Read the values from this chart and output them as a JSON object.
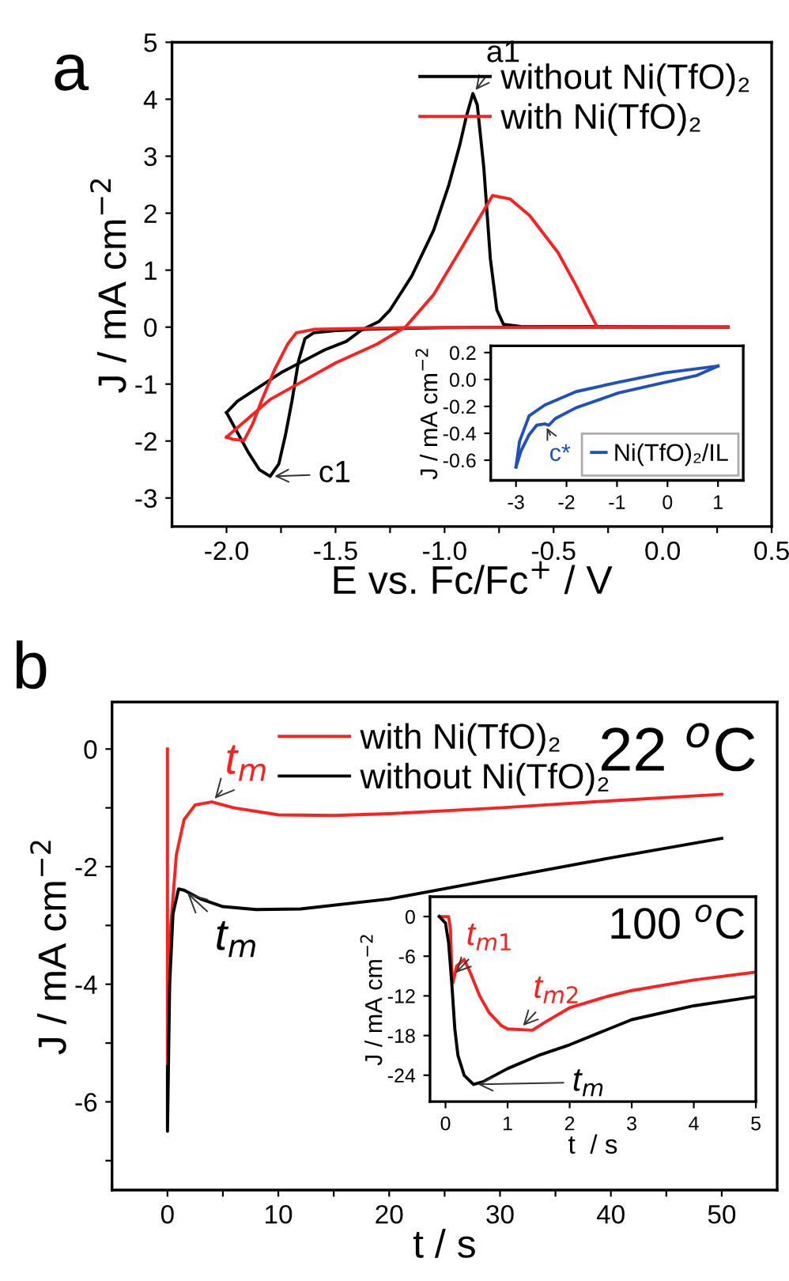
{
  "chart_data": [
    {
      "type": "line",
      "title": "a",
      "xlabel": "E vs. Fc/Fc$^{+}$ / V",
      "ylabel": "J / mA cm$^{−2}$",
      "xlim": [
        -2.25,
        0.5
      ],
      "ylim": [
        -3.5,
        5
      ],
      "xticks": [
        {
          "value": -2,
          "label": "-2.0"
        },
        {
          "value": -1.75,
          "label": null
        },
        {
          "value": -1.5,
          "label": "-1.5"
        },
        {
          "value": -1.25,
          "label": null
        },
        {
          "value": -1,
          "label": "-1.0"
        },
        {
          "value": -0.75,
          "label": null
        },
        {
          "value": -0.5,
          "label": "-0.5"
        },
        {
          "value": -0.25,
          "label": null
        },
        {
          "value": 0,
          "label": "0.0"
        },
        {
          "value": 0.25,
          "label": null
        },
        {
          "value": 0.5,
          "label": "0.5"
        }
      ],
      "yticks": [
        {
          "value": -3,
          "label": "-3"
        },
        {
          "value": -2,
          "label": "-2"
        },
        {
          "value": -1,
          "label": "-1"
        },
        0,
        1,
        2,
        3,
        4,
        5
      ],
      "legend": "top right",
      "grid": false,
      "annotations": [
        {
          "text": "a1",
          "x": -0.87,
          "y": 4.1
        },
        {
          "text": "c1",
          "x": -1.8,
          "y": -2.62
        }
      ],
      "series": [
        {
          "name": "without Ni(TfO)₂",
          "color": "#000000",
          "x": [
            0.3,
            -0.5,
            -1.0,
            -1.3,
            -1.5,
            -1.6,
            -1.64,
            -1.67,
            -1.7,
            -1.73,
            -1.76,
            -1.8,
            -1.85,
            -1.9,
            -1.95,
            -2.0
          ],
          "values": [
            0,
            0,
            -0.01,
            -0.03,
            -0.06,
            -0.1,
            -0.2,
            -0.6,
            -1.3,
            -1.9,
            -2.4,
            -2.62,
            -2.5,
            -2.2,
            -1.85,
            -1.5
          ]
        },
        {
          "color": "#000000",
          "x": [
            -2.0,
            -1.95,
            -1.85,
            -1.75,
            -1.65,
            -1.55,
            -1.45,
            -1.38,
            -1.3,
            -1.25,
            -1.15,
            -1.05,
            -0.98,
            -0.93,
            -0.9,
            -0.87,
            -0.85,
            -0.82,
            -0.79,
            -0.76,
            -0.73,
            -0.65,
            0.3
          ],
          "values": [
            -1.5,
            -1.3,
            -1.05,
            -0.8,
            -0.6,
            -0.4,
            -0.25,
            -0.05,
            0.1,
            0.3,
            0.9,
            1.7,
            2.5,
            3.2,
            3.7,
            4.1,
            3.9,
            2.8,
            1.2,
            0.3,
            0.05,
            0.01,
            0
          ]
        },
        {
          "name": "with Ni(TfO)₂",
          "color": "#ff2020",
          "x": [
            0.3,
            -1.2,
            -1.6,
            -1.68,
            -1.72,
            -1.78,
            -1.84,
            -1.88,
            -1.92,
            -1.97,
            -2.0
          ],
          "values": [
            0,
            -0.01,
            -0.04,
            -0.1,
            -0.3,
            -0.75,
            -1.3,
            -1.7,
            -1.99,
            -1.97,
            -1.93
          ]
        },
        {
          "color": "#ff2020",
          "x": [
            -2.0,
            -1.9,
            -1.8,
            -1.65,
            -1.5,
            -1.31,
            -1.18,
            -1.05,
            -0.92,
            -0.78,
            -0.7,
            -0.61,
            -0.48,
            -0.4,
            -0.34,
            -0.3,
            0.3
          ],
          "values": [
            -1.93,
            -1.6,
            -1.27,
            -0.95,
            -0.63,
            -0.3,
            0,
            0.57,
            1.4,
            2.31,
            2.25,
            1.96,
            1.31,
            0.75,
            0.3,
            0,
            0
          ]
        }
      ]
    },
    {
      "type": "line",
      "ylabel": "J / mA cm$^{−2}$",
      "xlim": [
        -3.5,
        1.5
      ],
      "ylim": [
        -0.75,
        0.25
      ],
      "xticks": [
        {
          "value": -3,
          "label": "-3"
        },
        {
          "value": -2,
          "label": "-2"
        },
        {
          "value": -1,
          "label": "-1"
        },
        0,
        1
      ],
      "yticks": [
        {
          "value": -0.6,
          "label": "-0.6"
        },
        {
          "value": -0.4,
          "label": "-0.4"
        },
        {
          "value": -0.2,
          "label": "-0.2"
        },
        {
          "value": 0,
          "label": "0.0"
        },
        0.2
      ],
      "legend": "bottom right",
      "grid": false,
      "annotations": [
        {
          "text": "c*",
          "x": -2.43,
          "y": -0.33
        }
      ],
      "series": [
        {
          "name": "Ni(TfO)₂/IL",
          "color": "#2050c0",
          "x": [
            -3.0,
            -2.93,
            -2.74,
            -2.43,
            -1.81,
            -0.97,
            -0.04,
            1.0
          ],
          "values": [
            -0.65,
            -0.46,
            -0.27,
            -0.19,
            -0.09,
            -0.02,
            0.05,
            0.1
          ]
        },
        {
          "color": "#2050c0",
          "x": [
            1.0,
            0.58,
            -0.04,
            -0.97,
            -1.81,
            -2.22,
            -2.35,
            -2.43,
            -2.59,
            -2.74,
            -2.9,
            -3.0
          ],
          "values": [
            0.1,
            0.03,
            -0.02,
            -0.1,
            -0.21,
            -0.29,
            -0.34,
            -0.33,
            -0.34,
            -0.41,
            -0.53,
            -0.65
          ]
        }
      ]
    },
    {
      "type": "line",
      "title": "b",
      "xlabel": "t / s",
      "ylabel": "J / mA cm$^{−2}$",
      "xlim": [
        -5,
        55
      ],
      "ylim": [
        -7.5,
        0.8
      ],
      "xticks": [
        0,
        {
          "value": 5,
          "label": null
        },
        10,
        {
          "value": 15,
          "label": null
        },
        20,
        {
          "value": 25,
          "label": null
        },
        30,
        {
          "value": 35,
          "label": null
        },
        40,
        {
          "value": 45,
          "label": null
        },
        50
      ],
      "yticks": [
        {
          "value": -7,
          "label": null
        },
        {
          "value": -6,
          "label": "-6"
        },
        {
          "value": -5,
          "label": null
        },
        {
          "value": -4,
          "label": "-4"
        },
        {
          "value": -3,
          "label": null
        },
        {
          "value": -2,
          "label": "-2"
        },
        {
          "value": -1,
          "label": null
        },
        0
      ],
      "legend": "top",
      "grid": false,
      "annotations": [
        "22 $^{o}$C",
        {
          "text": "t$_{m}$",
          "x": 4,
          "y": -0.9
        },
        {
          "text": "t$_{m}$",
          "x": 1.5,
          "y": -2.4
        }
      ],
      "series": [
        {
          "name": "with Ni(TfO)₂",
          "color": "#ff2020",
          "x": [
            0,
            0,
            0.3,
            0.8,
            1.5,
            2.5,
            4,
            6,
            10,
            15,
            20,
            30,
            40,
            50
          ],
          "values": [
            0,
            -5.4,
            -3.0,
            -1.8,
            -1.2,
            -0.95,
            -0.9,
            -1.0,
            -1.12,
            -1.13,
            -1.1,
            -1.0,
            -0.88,
            -0.77
          ]
        },
        {
          "name": "without Ni(TfO)₂",
          "color": "#000000",
          "x": [
            0,
            0,
            0.2,
            0.5,
            1,
            1.5,
            3,
            5,
            8,
            12,
            20,
            30,
            40,
            50
          ],
          "values": [
            -5.4,
            -6.5,
            -4.0,
            -2.8,
            -2.38,
            -2.4,
            -2.55,
            -2.68,
            -2.73,
            -2.72,
            -2.55,
            -2.2,
            -1.85,
            -1.52
          ]
        }
      ]
    },
    {
      "type": "line",
      "xlabel": "t  / s",
      "ylabel": "J / mA cm$^{−2}$",
      "xlim": [
        -0.25,
        5
      ],
      "ylim": [
        -28,
        3
      ],
      "xticks": [
        0,
        1,
        2,
        3,
        4,
        5
      ],
      "yticks": [
        {
          "value": -24,
          "label": "-24"
        },
        {
          "value": -18,
          "label": "-18"
        },
        {
          "value": -12,
          "label": "-12"
        },
        {
          "value": -6,
          "label": "-6"
        },
        0
      ],
      "grid": false,
      "annotations": [
        "100 $^{o}$C",
        {
          "text": "t$_{m1}$",
          "x": 0.12,
          "y": -9
        },
        {
          "text": "t$_{m2}$",
          "x": 1.2,
          "y": -17
        },
        {
          "text": "t$_{m}$",
          "x": 0.45,
          "y": -25.4
        }
      ],
      "series": [
        {
          "color": "#ff2020",
          "x": [
            -0.1,
            0.05,
            0.08,
            0.1,
            0.12,
            0.18,
            0.3,
            0.4,
            0.55,
            0.7,
            0.9,
            1.0,
            1.4,
            1.6,
            2.0,
            2.6,
            3.0,
            4.0,
            5.0
          ],
          "values": [
            0,
            0,
            -2,
            -8,
            -10,
            -7.5,
            -6.5,
            -8.5,
            -12,
            -14.5,
            -16.5,
            -17,
            -17.2,
            -16,
            -13.8,
            -12.1,
            -11.2,
            -9.6,
            -8.4
          ]
        },
        {
          "color": "#000000",
          "x": [
            -0.1,
            0,
            0.05,
            0.1,
            0.15,
            0.2,
            0.3,
            0.45,
            0.6,
            1.0,
            1.5,
            2.0,
            3.0,
            4.0,
            5.0
          ],
          "values": [
            0,
            -1,
            -4,
            -10,
            -17,
            -21,
            -24,
            -25.4,
            -25,
            -23,
            -21,
            -19.4,
            -15.6,
            -13.5,
            -12.1
          ]
        }
      ]
    }
  ]
}
